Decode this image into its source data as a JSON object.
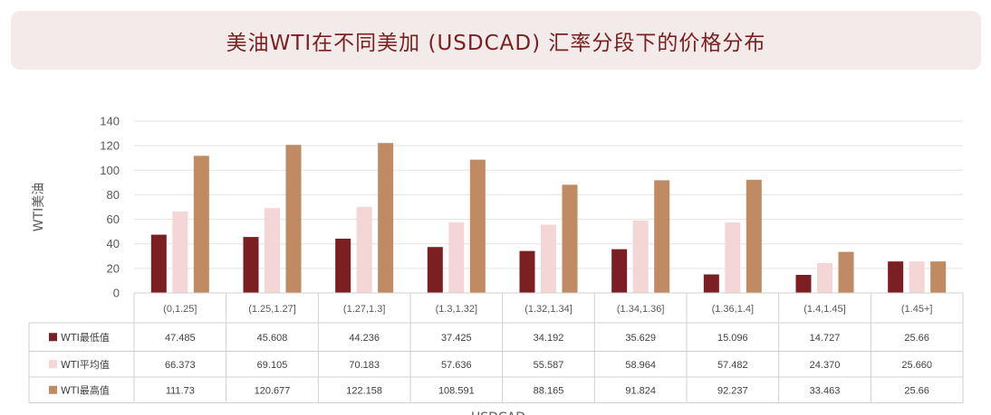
{
  "chart_data": {
    "type": "bar",
    "title": "美油WTI在不同美加 (USDCAD) 汇率分段下的价格分布",
    "xlabel": "USDCAD",
    "ylabel": "WTI美油",
    "ylim": [
      0,
      140
    ],
    "yticks": [
      "0",
      "20",
      "40",
      "60",
      "80",
      "100",
      "120",
      "140"
    ],
    "grid": true,
    "legend_placement": "data-table",
    "categories": [
      "(0,1.25]",
      "(1.25,1.27]",
      "(1.27,1.3]",
      "(1.3,1.32]",
      "(1.32,1.34]",
      "(1.34,1.36]",
      "(1.36,1.4]",
      "(1.4,1.45]",
      "(1.45+]"
    ],
    "series": [
      {
        "name": "WTI最低值",
        "color": "#7b1f22",
        "values": [
          47.485,
          45.608,
          44.236,
          37.425,
          34.192,
          35.629,
          15.096,
          14.727,
          25.66
        ],
        "labels": [
          "47.485",
          "45.608",
          "44.236",
          "37.425",
          "34.192",
          "35.629",
          "15.096",
          "14.727",
          "25.66"
        ]
      },
      {
        "name": "WTI平均值",
        "color": "#f4d6d6",
        "values": [
          66.373,
          69.105,
          70.183,
          57.636,
          55.587,
          58.964,
          57.482,
          24.37,
          25.66
        ],
        "labels": [
          "66.373",
          "69.105",
          "70.183",
          "57.636",
          "55.587",
          "58.964",
          "57.482",
          "24.370",
          "25.660"
        ]
      },
      {
        "name": "WTI最高值",
        "color": "#c08a62",
        "values": [
          111.73,
          120.677,
          122.158,
          108.591,
          88.165,
          91.824,
          92.237,
          33.463,
          25.66
        ],
        "labels": [
          "111.73",
          "120.677",
          "122.158",
          "108.591",
          "88.165",
          "91.824",
          "92.237",
          "33.463",
          "25.66"
        ]
      }
    ]
  }
}
